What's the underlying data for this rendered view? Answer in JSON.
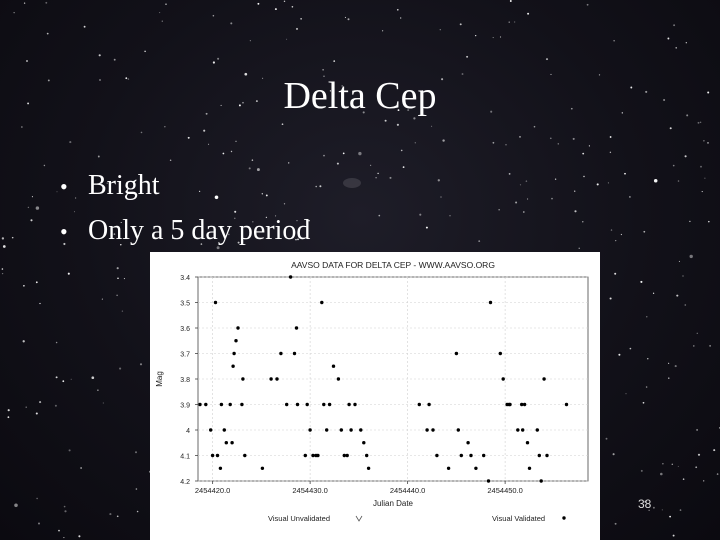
{
  "slide": {
    "title": "Delta Cep",
    "bullets": [
      "Bright",
      "Only a 5 day period"
    ],
    "page_number": "38"
  },
  "chart_data": {
    "type": "scatter",
    "title": "AAVSO DATA FOR DELTA CEP - WWW.AAVSO.ORG",
    "xlabel": "Julian Date",
    "ylabel": "Mag",
    "xlim": [
      2454418.5,
      2454458.5
    ],
    "ylim": [
      3.4,
      4.2
    ],
    "y_reversed": true,
    "x_ticks": [
      2454420.0,
      2454430.0,
      2454440.0,
      2454450.0
    ],
    "x_tick_labels": [
      "2454420.0",
      "2454430.0",
      "2454440.0",
      "2454450.0"
    ],
    "y_ticks": [
      3.4,
      3.5,
      3.6,
      3.7,
      3.8,
      3.9,
      4.0,
      4.1,
      4.2
    ],
    "y_tick_labels": [
      "3.4",
      "3.5",
      "3.6",
      "3.7",
      "3.8",
      "3.9",
      "4",
      "4.1",
      "4.2"
    ],
    "grid": true,
    "legend": [
      "Visual Unvalidated",
      "Visual Validated"
    ],
    "legend_position": "bottom",
    "series": [
      {
        "name": "Visual Validated",
        "x": [
          2454418.7,
          2454419.3,
          2454419.8,
          2454420.0,
          2454420.3,
          2454420.5,
          2454420.8,
          2454420.9,
          2454421.2,
          2454421.4,
          2454421.8,
          2454422.0,
          2454422.1,
          2454422.2,
          2454422.4,
          2454422.6,
          2454423.0,
          2454423.1,
          2454423.3,
          2454425.1,
          2454426.0,
          2454426.6,
          2454427.0,
          2454427.6,
          2454428.0,
          2454428.4,
          2454428.6,
          2454428.7,
          2454429.5,
          2454429.7,
          2454430.0,
          2454430.3,
          2454430.6,
          2454430.8,
          2454431.2,
          2454431.4,
          2454431.7,
          2454432.0,
          2454432.4,
          2454432.9,
          2454433.2,
          2454433.5,
          2454433.8,
          2454434.0,
          2454434.2,
          2454434.6,
          2454435.2,
          2454435.5,
          2454435.8,
          2454436.0,
          2454441.2,
          2454442.0,
          2454442.2,
          2454442.6,
          2454443.0,
          2454444.2,
          2454445.0,
          2454445.2,
          2454445.5,
          2454446.2,
          2454446.5,
          2454447.0,
          2454447.8,
          2454448.3,
          2454448.5,
          2454449.5,
          2454449.8,
          2454450.2,
          2454450.4,
          2454450.5,
          2454451.3,
          2454451.7,
          2454451.8,
          2454452.0,
          2454452.3,
          2454452.5,
          2454453.3,
          2454453.5,
          2454453.7,
          2454454.0,
          2454454.3,
          2454456.3
        ],
        "y": [
          3.9,
          3.9,
          4.0,
          4.1,
          3.5,
          4.1,
          4.15,
          3.9,
          4.0,
          4.05,
          3.9,
          4.05,
          3.75,
          3.7,
          3.65,
          3.6,
          3.9,
          3.8,
          4.1,
          4.15,
          3.8,
          3.8,
          3.7,
          3.9,
          3.4,
          3.7,
          3.6,
          3.9,
          4.1,
          3.9,
          4.0,
          4.1,
          4.1,
          4.1,
          3.5,
          3.9,
          4.0,
          3.9,
          3.75,
          3.8,
          4.0,
          4.1,
          4.1,
          3.9,
          4.0,
          3.9,
          4.0,
          4.05,
          4.1,
          4.15,
          3.9,
          4.0,
          3.9,
          4.0,
          4.1,
          4.15,
          3.7,
          4.0,
          4.1,
          4.05,
          4.1,
          4.15,
          4.1,
          4.2,
          3.5,
          3.7,
          3.8,
          3.9,
          3.9,
          3.9,
          4.0,
          3.9,
          4.0,
          3.9,
          4.05,
          4.15,
          4.0,
          4.1,
          4.2,
          3.8,
          4.1,
          3.9
        ]
      }
    ]
  },
  "colors": {
    "slide_text": "#ffffff",
    "chart_background": "#ffffff",
    "points": "#000000",
    "grid": "#d0d0d0"
  }
}
